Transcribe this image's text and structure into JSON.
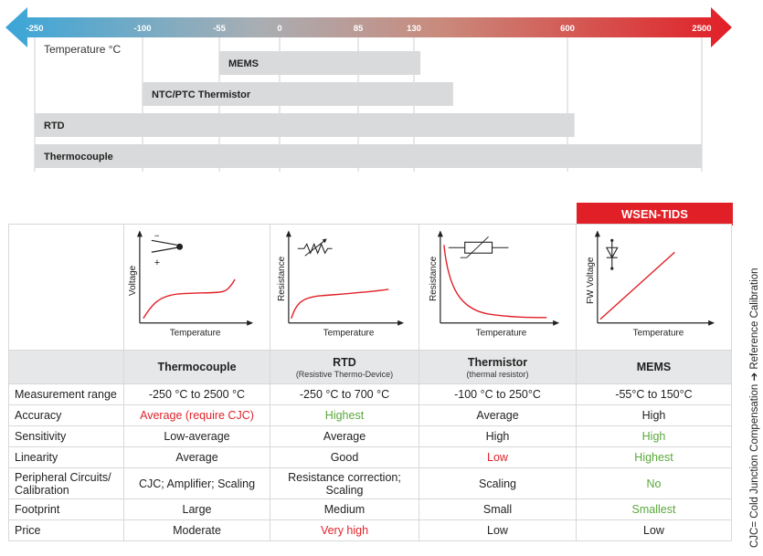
{
  "temperature_chart": {
    "axis_label": "Temperature °C",
    "ticks": [
      "-250",
      "-100",
      "-55",
      "0",
      "85",
      "130",
      "600",
      "2500"
    ],
    "bars": [
      {
        "label": "MEMS",
        "min": "-55",
        "max": "150"
      },
      {
        "label": "NTC/PTC Thermistor",
        "min": "-100",
        "max": "250"
      },
      {
        "label": "RTD",
        "min": "-250",
        "max": "700"
      },
      {
        "label": "Thermocouple",
        "min": "-250",
        "max": "2500"
      }
    ],
    "colors": {
      "arrow_start": "#3aa6d8",
      "arrow_end": "#e11f26",
      "bar": "#d9dadb"
    }
  },
  "highlight_badge": "WSEN-TIDS",
  "side_note": "CJC= Cold Junction Compensation ➔ Reference Calibration",
  "graphs": [
    {
      "ylabel": "Voltage",
      "xlabel": "Temperature",
      "symbol": "thermocouple-icon",
      "plus": "+",
      "minus": "−"
    },
    {
      "ylabel": "Resistance",
      "xlabel": "Temperature",
      "symbol": "variable-resistor-icon"
    },
    {
      "ylabel": "Resistance",
      "xlabel": "Temperature",
      "symbol": "thermistor-icon"
    },
    {
      "ylabel": "FW Voltage",
      "xlabel": "Temperature",
      "symbol": "diode-icon"
    }
  ],
  "columns": [
    {
      "name": "Thermocouple",
      "sub": ""
    },
    {
      "name": "RTD",
      "sub": "(Resistive Thermo-Device)"
    },
    {
      "name": "Thermistor",
      "sub": "(thermal resistor)"
    },
    {
      "name": "MEMS",
      "sub": ""
    }
  ],
  "rows": [
    {
      "label": "Measurement range",
      "cells": [
        {
          "text": "-250 °C to 2500 °C"
        },
        {
          "text": "-250 °C to 700 °C"
        },
        {
          "text": "-100 °C to 250°C"
        },
        {
          "text": "-55°C to 150°C"
        }
      ]
    },
    {
      "label": "Accuracy",
      "cells": [
        {
          "text": "Average (require CJC)",
          "color": "red"
        },
        {
          "text": "Highest",
          "color": "green"
        },
        {
          "text": "Average"
        },
        {
          "text": "High"
        }
      ]
    },
    {
      "label": "Sensitivity",
      "cells": [
        {
          "text": "Low-average"
        },
        {
          "text": "Average"
        },
        {
          "text": "High"
        },
        {
          "text": "High",
          "color": "green"
        }
      ]
    },
    {
      "label": "Linearity",
      "cells": [
        {
          "text": "Average"
        },
        {
          "text": "Good"
        },
        {
          "text": "Low",
          "color": "red"
        },
        {
          "text": "Highest",
          "color": "green"
        }
      ]
    },
    {
      "label": "Peripheral Circuits/ Calibration",
      "cells": [
        {
          "text": "CJC; Amplifier; Scaling"
        },
        {
          "text": "Resistance correction; Scaling"
        },
        {
          "text": "Scaling"
        },
        {
          "text": "No",
          "color": "green"
        }
      ]
    },
    {
      "label": "Footprint",
      "cells": [
        {
          "text": "Large"
        },
        {
          "text": "Medium"
        },
        {
          "text": "Small"
        },
        {
          "text": "Smallest",
          "color": "green"
        }
      ]
    },
    {
      "label": "Price",
      "cells": [
        {
          "text": "Moderate"
        },
        {
          "text": "Very high",
          "color": "red"
        },
        {
          "text": "Low"
        },
        {
          "text": "Low"
        }
      ]
    }
  ]
}
